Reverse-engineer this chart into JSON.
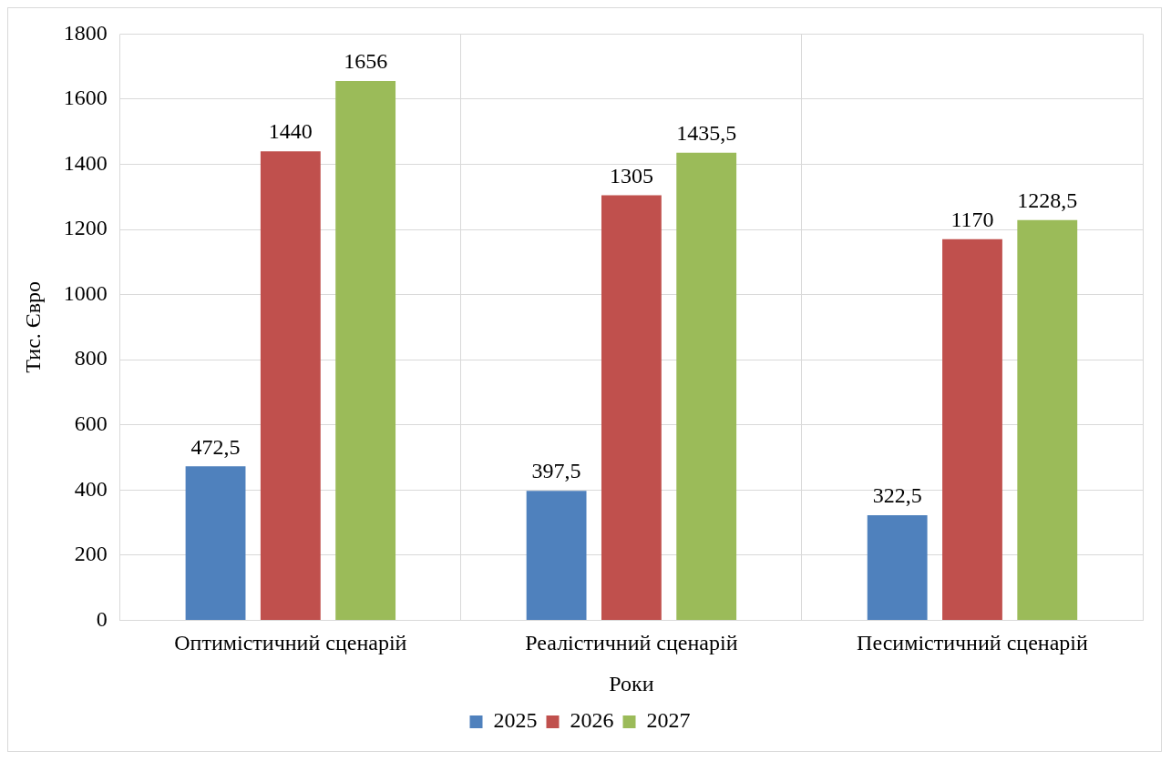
{
  "chart_data": {
    "type": "bar",
    "categories": [
      "Оптимістичний сценарій",
      "Реалістичний сценарій",
      "Песимістичний сценарій"
    ],
    "series": [
      {
        "name": "2025",
        "color": "#4f81bd",
        "values": [
          472.5,
          397.5,
          322.5
        ],
        "value_labels": [
          "472,5",
          "397,5",
          "322,5"
        ]
      },
      {
        "name": "2026",
        "color": "#c0504d",
        "values": [
          1440,
          1305,
          1170
        ],
        "value_labels": [
          "1440",
          "1305",
          "1170"
        ]
      },
      {
        "name": "2027",
        "color": "#9bbb59",
        "values": [
          1656,
          1435.5,
          1228.5
        ],
        "value_labels": [
          "1656",
          "1435,5",
          "1228,5"
        ]
      }
    ],
    "xlabel": "Роки",
    "ylabel": "Тис. Євро",
    "ylim": [
      0,
      1800
    ],
    "yticks": [
      0,
      200,
      400,
      600,
      800,
      1000,
      1200,
      1400,
      1600,
      1800
    ],
    "grid": true,
    "legend": "bottom"
  }
}
